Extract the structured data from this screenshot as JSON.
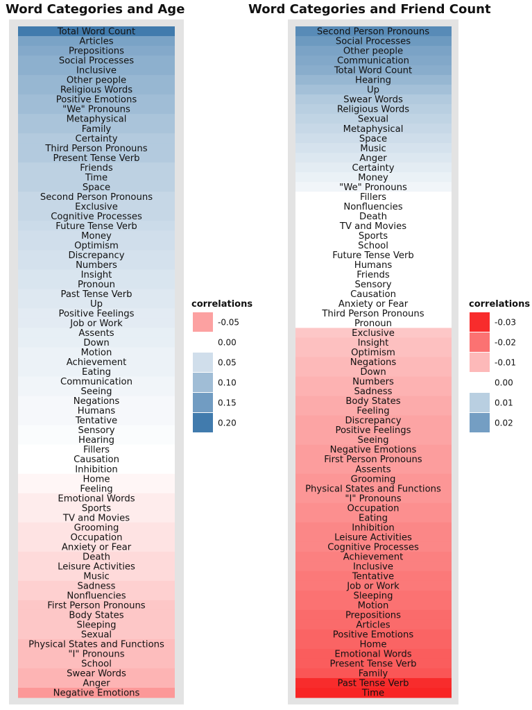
{
  "chart_data": [
    {
      "type": "heatmap",
      "title": "Word Categories and Age",
      "categories": [
        "Total Word Count",
        "Articles",
        "Prepositions",
        "Social Processes",
        "Inclusive",
        "Other people",
        "Religious Words",
        "Positive Emotions",
        "\"We\" Pronouns",
        "Metaphysical",
        "Family",
        "Certainty",
        "Third Person Pronouns",
        "Present Tense Verb",
        "Friends",
        "Time",
        "Space",
        "Second Person Pronouns",
        "Exclusive",
        "Cognitive Processes",
        "Future Tense Verb",
        "Money",
        "Optimism",
        "Discrepancy",
        "Numbers",
        "Insight",
        "Pronoun",
        "Past Tense Verb",
        "Up",
        "Positive Feelings",
        "Job or Work",
        "Assents",
        "Down",
        "Motion",
        "Achievement",
        "Eating",
        "Communication",
        "Seeing",
        "Negations",
        "Humans",
        "Tentative",
        "Sensory",
        "Hearing",
        "Fillers",
        "Causation",
        "Inhibition",
        "Home",
        "Feeling",
        "Emotional Words",
        "Sports",
        "TV and Movies",
        "Grooming",
        "Occupation",
        "Anxiety or Fear",
        "Death",
        "Leisure Activities",
        "Music",
        "Sadness",
        "Nonfluencies",
        "First Person Pronouns",
        "Body States",
        "Sleeping",
        "Sexual",
        "Physical States and Functions",
        "\"I\" Pronouns",
        "School",
        "Swear Words",
        "Anger",
        "Negative Emotions"
      ],
      "values": [
        0.2,
        0.14,
        0.13,
        0.12,
        0.12,
        0.11,
        0.11,
        0.1,
        0.1,
        0.09,
        0.09,
        0.08,
        0.08,
        0.08,
        0.07,
        0.07,
        0.07,
        0.06,
        0.06,
        0.06,
        0.055,
        0.05,
        0.05,
        0.045,
        0.045,
        0.04,
        0.04,
        0.035,
        0.035,
        0.03,
        0.03,
        0.025,
        0.025,
        0.02,
        0.02,
        0.02,
        0.015,
        0.015,
        0.01,
        0.01,
        0.01,
        0.005,
        0.005,
        0.0,
        0.0,
        0.0,
        -0.005,
        -0.005,
        -0.01,
        -0.01,
        -0.01,
        -0.015,
        -0.015,
        -0.015,
        -0.02,
        -0.02,
        -0.02,
        -0.025,
        -0.025,
        -0.03,
        -0.03,
        -0.03,
        -0.03,
        -0.035,
        -0.035,
        -0.035,
        -0.04,
        -0.04,
        -0.055
      ],
      "legend": {
        "title": "correlations",
        "entries": [
          {
            "label": "-0.05",
            "value": -0.05
          },
          {
            "label": "0.00",
            "value": 0.0
          },
          {
            "label": "0.05",
            "value": 0.05
          },
          {
            "label": "0.10",
            "value": 0.1
          },
          {
            "label": "0.15",
            "value": 0.15
          },
          {
            "label": "0.20",
            "value": 0.2
          }
        ]
      },
      "colors": {
        "negative": "#f81e1e",
        "positive": "#2e6ea5",
        "neutral": "#ffffff"
      },
      "color_scale": {
        "max_negative": 0.12,
        "max_positive": 0.22
      }
    },
    {
      "type": "heatmap",
      "title": "Word Categories and Friend Count",
      "categories": [
        "Second Person Pronouns",
        "Social Processes",
        "Other people",
        "Communication",
        "Total Word Count",
        "Hearing",
        "Up",
        "Swear Words",
        "Religious Words",
        "Sexual",
        "Metaphysical",
        "Space",
        "Music",
        "Anger",
        "Certainty",
        "Money",
        "\"We\" Pronouns",
        "Fillers",
        "Nonfluencies",
        "Death",
        "TV and Movies",
        "Sports",
        "School",
        "Future Tense Verb",
        "Humans",
        "Friends",
        "Sensory",
        "Causation",
        "Anxiety or Fear",
        "Third Person Pronouns",
        "Pronoun",
        "Exclusive",
        "Insight",
        "Optimism",
        "Negations",
        "Down",
        "Numbers",
        "Sadness",
        "Body States",
        "Feeling",
        "Discrepancy",
        "Positive Feelings",
        "Seeing",
        "Negative Emotions",
        "First Person Pronouns",
        "Assents",
        "Grooming",
        "Physical States and Functions",
        "\"I\" Pronouns",
        "Occupation",
        "Eating",
        "Inhibition",
        "Leisure Activities",
        "Cognitive Processes",
        "Achievement",
        "Inclusive",
        "Tentative",
        "Job or Work",
        "Sleeping",
        "Motion",
        "Prepositions",
        "Articles",
        "Positive Emotions",
        "Home",
        "Emotional Words",
        "Present Tense Verb",
        "Family",
        "Past Tense Verb",
        "Time"
      ],
      "values": [
        0.024,
        0.021,
        0.019,
        0.018,
        0.017,
        0.015,
        0.013,
        0.011,
        0.01,
        0.009,
        0.008,
        0.007,
        0.006,
        0.005,
        0.004,
        0.003,
        0.002,
        0.0,
        0.0,
        0.0,
        0.0,
        0.0,
        0.0,
        0.0,
        0.0,
        0.0,
        0.0,
        0.0,
        0.0,
        0.0,
        0.0,
        -0.008,
        -0.009,
        -0.009,
        -0.01,
        -0.01,
        -0.011,
        -0.011,
        -0.012,
        -0.012,
        -0.013,
        -0.013,
        -0.013,
        -0.014,
        -0.014,
        -0.014,
        -0.015,
        -0.015,
        -0.015,
        -0.016,
        -0.016,
        -0.017,
        -0.017,
        -0.017,
        -0.018,
        -0.018,
        -0.019,
        -0.019,
        -0.02,
        -0.02,
        -0.021,
        -0.021,
        -0.022,
        -0.022,
        -0.023,
        -0.023,
        -0.024,
        -0.03,
        -0.031
      ],
      "legend": {
        "title": "correlations",
        "entries": [
          {
            "label": "-0.03",
            "value": -0.03
          },
          {
            "label": "-0.02",
            "value": -0.02
          },
          {
            "label": "-0.01",
            "value": -0.01
          },
          {
            "label": "0.00",
            "value": 0.0
          },
          {
            "label": "0.01",
            "value": 0.01
          },
          {
            "label": "0.02",
            "value": 0.02
          }
        ]
      },
      "colors": {
        "negative": "#f81e1e",
        "positive": "#2e6ea5",
        "neutral": "#ffffff"
      },
      "color_scale": {
        "max_negative": 0.032,
        "max_positive": 0.03
      }
    }
  ]
}
